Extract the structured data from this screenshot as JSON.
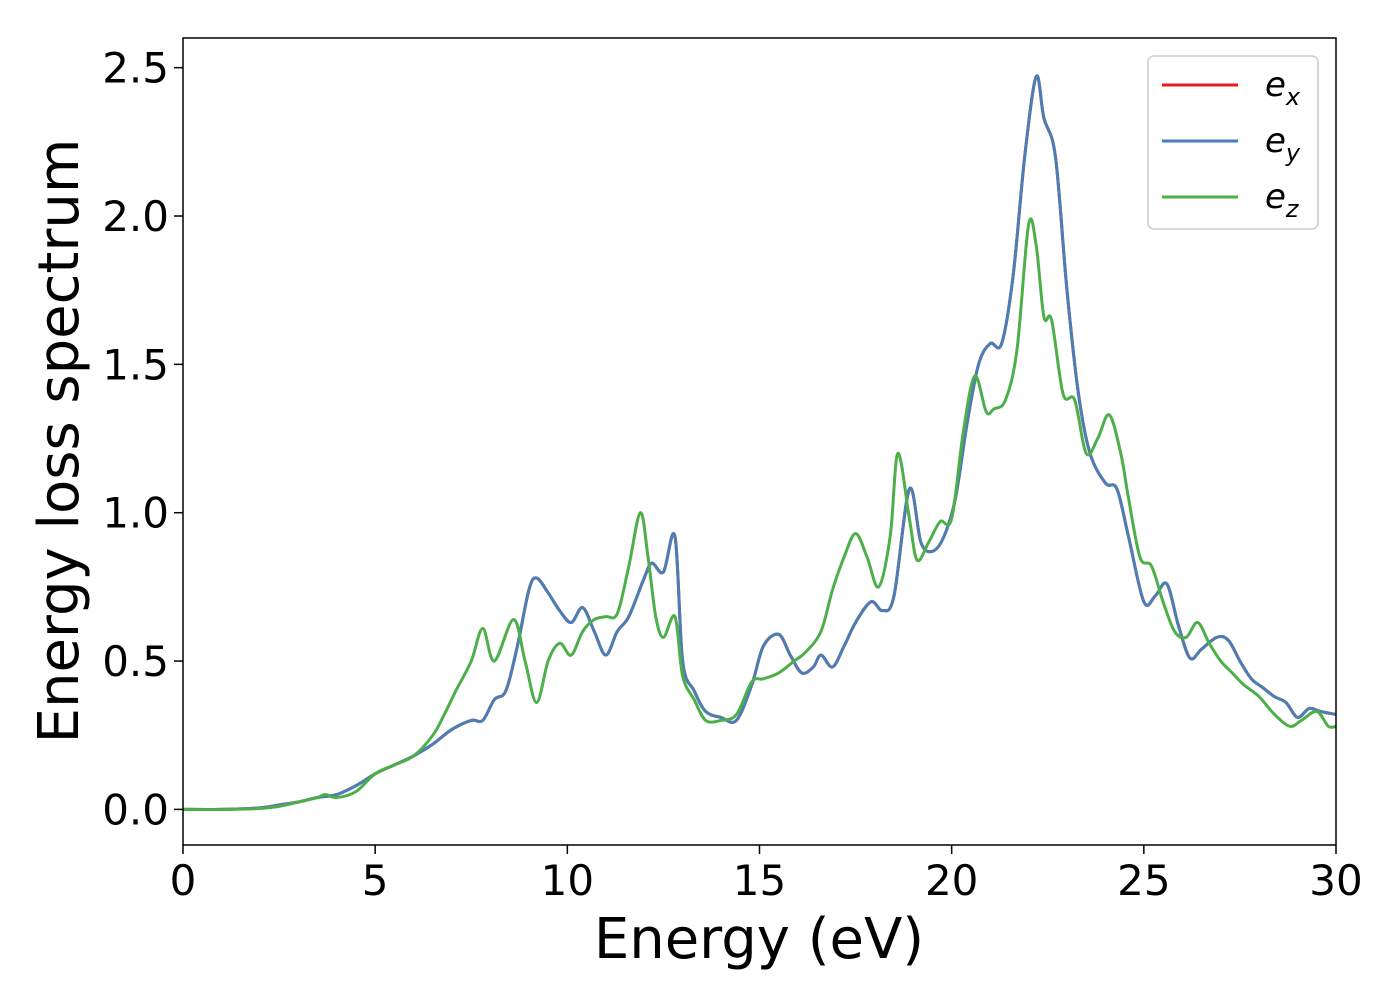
{
  "chart_data": {
    "type": "line",
    "title": "",
    "xlabel": "Energy (eV)",
    "ylabel": "Energy loss spectrum",
    "xlim": [
      0,
      30
    ],
    "ylim": [
      -0.12,
      2.6
    ],
    "xticks": [
      0,
      5,
      10,
      15,
      20,
      25,
      30
    ],
    "xtick_labels": [
      "0",
      "5",
      "10",
      "15",
      "20",
      "25",
      "30"
    ],
    "yticks": [
      0.0,
      0.5,
      1.0,
      1.5,
      2.0,
      2.5
    ],
    "ytick_labels": [
      "0.0",
      "0.5",
      "1.0",
      "1.5",
      "2.0",
      "2.5"
    ],
    "grid": false,
    "legend_position": "top-right",
    "series": [
      {
        "name": "e_x",
        "legend_base": "e",
        "legend_sub": "x",
        "color": "#e41a1c",
        "x": [
          0,
          1,
          2,
          2.5,
          3,
          3.5,
          4,
          4.5,
          5,
          5.5,
          6,
          6.5,
          7,
          7.5,
          7.8,
          8.1,
          8.4,
          8.7,
          9.0,
          9.2,
          9.5,
          9.8,
          10.1,
          10.4,
          10.7,
          11.0,
          11.3,
          11.6,
          12.0,
          12.2,
          12.5,
          12.8,
          13.0,
          13.3,
          13.6,
          14.0,
          14.4,
          14.8,
          15.1,
          15.5,
          15.8,
          16.1,
          16.4,
          16.6,
          16.9,
          17.2,
          17.5,
          17.9,
          18.2,
          18.5,
          18.9,
          19.2,
          19.5,
          19.8,
          20.1,
          20.4,
          20.7,
          21.0,
          21.3,
          21.6,
          21.9,
          22.2,
          22.4,
          22.7,
          23.0,
          23.3,
          23.6,
          24.0,
          24.3,
          24.6,
          25.0,
          25.3,
          25.6,
          25.9,
          26.2,
          26.5,
          26.9,
          27.2,
          27.5,
          27.8,
          28.1,
          28.4,
          28.7,
          29.0,
          29.3,
          29.6,
          30.0
        ],
        "values": [
          0.0,
          0.0,
          0.005,
          0.015,
          0.025,
          0.04,
          0.05,
          0.08,
          0.12,
          0.15,
          0.18,
          0.22,
          0.27,
          0.3,
          0.3,
          0.37,
          0.4,
          0.55,
          0.74,
          0.78,
          0.73,
          0.67,
          0.63,
          0.68,
          0.6,
          0.52,
          0.6,
          0.65,
          0.78,
          0.83,
          0.8,
          0.92,
          0.5,
          0.4,
          0.33,
          0.31,
          0.3,
          0.42,
          0.55,
          0.59,
          0.52,
          0.46,
          0.48,
          0.52,
          0.48,
          0.55,
          0.63,
          0.7,
          0.67,
          0.72,
          1.08,
          0.9,
          0.87,
          0.92,
          1.05,
          1.3,
          1.5,
          1.57,
          1.57,
          1.8,
          2.2,
          2.47,
          2.33,
          2.2,
          1.75,
          1.4,
          1.2,
          1.1,
          1.08,
          0.92,
          0.7,
          0.72,
          0.76,
          0.62,
          0.51,
          0.54,
          0.58,
          0.57,
          0.5,
          0.44,
          0.41,
          0.38,
          0.36,
          0.31,
          0.34,
          0.33,
          0.32
        ]
      },
      {
        "name": "e_y",
        "legend_base": "e",
        "legend_sub": "y",
        "color": "#4a7fb5",
        "x": [
          0,
          1,
          2,
          2.5,
          3,
          3.5,
          4,
          4.5,
          5,
          5.5,
          6,
          6.5,
          7,
          7.5,
          7.8,
          8.1,
          8.4,
          8.7,
          9.0,
          9.2,
          9.5,
          9.8,
          10.1,
          10.4,
          10.7,
          11.0,
          11.3,
          11.6,
          12.0,
          12.2,
          12.5,
          12.8,
          13.0,
          13.3,
          13.6,
          14.0,
          14.4,
          14.8,
          15.1,
          15.5,
          15.8,
          16.1,
          16.4,
          16.6,
          16.9,
          17.2,
          17.5,
          17.9,
          18.2,
          18.5,
          18.9,
          19.2,
          19.5,
          19.8,
          20.1,
          20.4,
          20.7,
          21.0,
          21.3,
          21.6,
          21.9,
          22.2,
          22.4,
          22.7,
          23.0,
          23.3,
          23.6,
          24.0,
          24.3,
          24.6,
          25.0,
          25.3,
          25.6,
          25.9,
          26.2,
          26.5,
          26.9,
          27.2,
          27.5,
          27.8,
          28.1,
          28.4,
          28.7,
          29.0,
          29.3,
          29.6,
          30.0
        ],
        "values": [
          0.0,
          0.0,
          0.005,
          0.015,
          0.025,
          0.04,
          0.05,
          0.08,
          0.12,
          0.15,
          0.18,
          0.22,
          0.27,
          0.3,
          0.3,
          0.37,
          0.4,
          0.55,
          0.74,
          0.78,
          0.73,
          0.67,
          0.63,
          0.68,
          0.6,
          0.52,
          0.6,
          0.65,
          0.78,
          0.83,
          0.8,
          0.92,
          0.5,
          0.4,
          0.33,
          0.31,
          0.3,
          0.42,
          0.55,
          0.59,
          0.52,
          0.46,
          0.48,
          0.52,
          0.48,
          0.55,
          0.63,
          0.7,
          0.67,
          0.72,
          1.08,
          0.9,
          0.87,
          0.92,
          1.05,
          1.3,
          1.5,
          1.57,
          1.57,
          1.8,
          2.2,
          2.47,
          2.33,
          2.2,
          1.75,
          1.4,
          1.2,
          1.1,
          1.08,
          0.92,
          0.7,
          0.72,
          0.76,
          0.62,
          0.51,
          0.54,
          0.58,
          0.57,
          0.5,
          0.44,
          0.41,
          0.38,
          0.36,
          0.31,
          0.34,
          0.33,
          0.32
        ]
      },
      {
        "name": "e_z",
        "legend_base": "e",
        "legend_sub": "z",
        "color": "#4daf4a",
        "x": [
          0,
          1,
          2,
          2.5,
          3,
          3.5,
          3.7,
          4.0,
          4.5,
          5,
          5.5,
          6,
          6.5,
          6.8,
          7.1,
          7.5,
          7.8,
          8.1,
          8.6,
          8.9,
          9.2,
          9.5,
          9.8,
          10.1,
          10.4,
          10.7,
          11.0,
          11.3,
          11.6,
          11.9,
          12.1,
          12.3,
          12.5,
          12.8,
          13.0,
          13.3,
          13.6,
          14.0,
          14.4,
          14.8,
          15.1,
          15.5,
          15.9,
          16.2,
          16.6,
          16.9,
          17.2,
          17.5,
          17.8,
          18.1,
          18.4,
          18.6,
          18.9,
          19.1,
          19.4,
          19.7,
          20.0,
          20.3,
          20.6,
          20.9,
          21.1,
          21.4,
          21.7,
          22.0,
          22.2,
          22.4,
          22.6,
          22.9,
          23.2,
          23.5,
          23.8,
          24.1,
          24.4,
          24.6,
          24.9,
          25.2,
          25.5,
          25.8,
          26.1,
          26.4,
          26.7,
          27.0,
          27.3,
          27.6,
          28.0,
          28.4,
          28.8,
          29.1,
          29.5,
          29.8,
          30.0
        ],
        "values": [
          0.0,
          0.0,
          0.003,
          0.01,
          0.025,
          0.04,
          0.05,
          0.04,
          0.06,
          0.12,
          0.15,
          0.18,
          0.25,
          0.32,
          0.4,
          0.5,
          0.61,
          0.5,
          0.64,
          0.5,
          0.36,
          0.5,
          0.56,
          0.52,
          0.6,
          0.64,
          0.65,
          0.66,
          0.82,
          1.0,
          0.85,
          0.65,
          0.58,
          0.65,
          0.45,
          0.37,
          0.3,
          0.3,
          0.32,
          0.43,
          0.44,
          0.46,
          0.5,
          0.53,
          0.6,
          0.74,
          0.85,
          0.93,
          0.85,
          0.75,
          0.92,
          1.2,
          0.98,
          0.84,
          0.9,
          0.97,
          0.98,
          1.27,
          1.46,
          1.34,
          1.35,
          1.38,
          1.55,
          1.97,
          1.9,
          1.66,
          1.65,
          1.4,
          1.38,
          1.2,
          1.25,
          1.33,
          1.2,
          1.05,
          0.85,
          0.82,
          0.7,
          0.6,
          0.58,
          0.63,
          0.56,
          0.5,
          0.46,
          0.42,
          0.38,
          0.32,
          0.28,
          0.3,
          0.33,
          0.28,
          0.28
        ]
      }
    ]
  }
}
